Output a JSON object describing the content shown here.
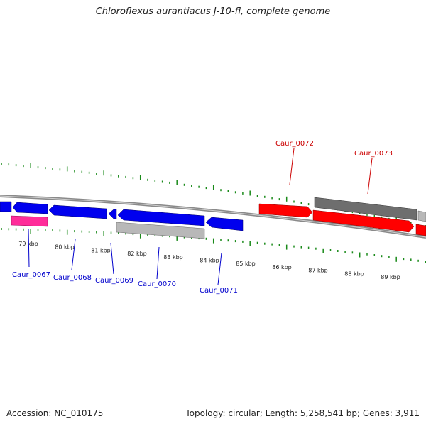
{
  "title": "Chloroflexus aurantiacus J-10-fl, complete genome",
  "footer": {
    "accession": "Accession: NC_010175",
    "summary": "Topology: circular; Length: 5,258,541 bp; Genes: 3,911"
  },
  "colors": {
    "tick": "#1a8a1a",
    "backbone": "#8a8a8a",
    "forward_gene": "#ff0000",
    "reverse_gene": "#0000ee",
    "pseudo_gene": "#aaaaaa",
    "rna_gene": "#ff2d9a",
    "label_forward": "#cc0000",
    "label_reverse": "#0000cc"
  },
  "ticks": [
    "79 kbp",
    "80 kbp",
    "81 kbp",
    "82 kbp",
    "83 kbp",
    "84 kbp",
    "85 kbp",
    "86 kbp",
    "87 kbp",
    "88 kbp",
    "89 kbp"
  ],
  "gene_labels": [
    {
      "name": "Caur_0067",
      "strand": "reverse"
    },
    {
      "name": "Caur_0068",
      "strand": "reverse"
    },
    {
      "name": "Caur_0069",
      "strand": "reverse"
    },
    {
      "name": "Caur_0070",
      "strand": "reverse"
    },
    {
      "name": "Caur_0071",
      "strand": "reverse"
    },
    {
      "name": "Caur_0072",
      "strand": "forward"
    },
    {
      "name": "Caur_0073",
      "strand": "forward"
    }
  ]
}
